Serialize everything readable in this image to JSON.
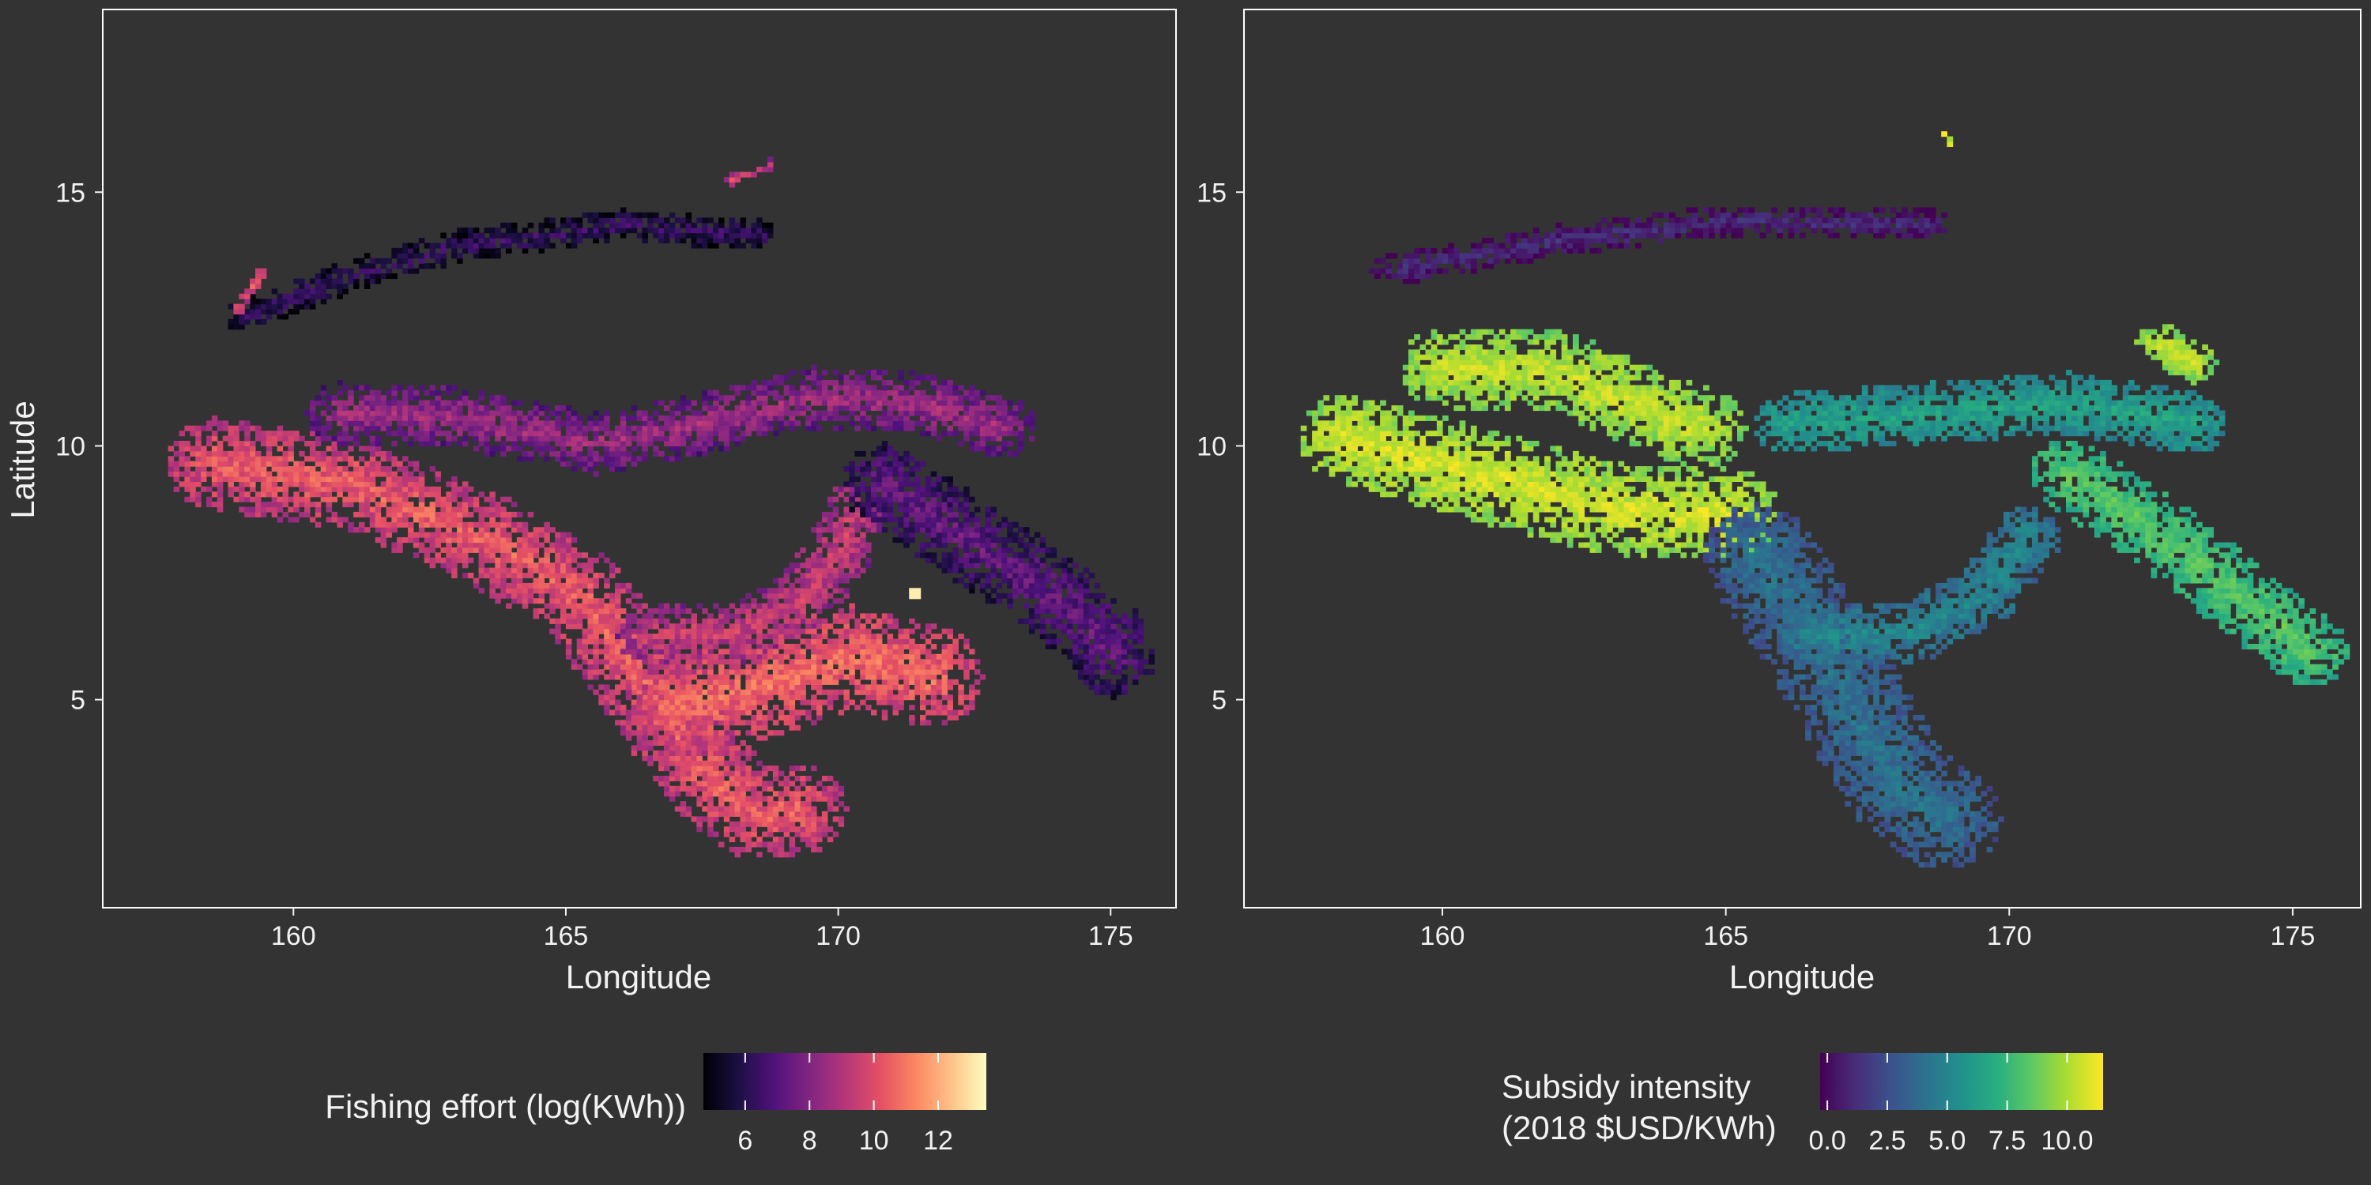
{
  "chart_data": [
    {
      "type": "heatmap",
      "title": "",
      "xlabel": "Longitude",
      "ylabel": "Latitude",
      "xlim": [
        156.5,
        176.2
      ],
      "ylim": [
        0.9,
        18.6
      ],
      "x_ticks": [
        160,
        165,
        170,
        175
      ],
      "y_ticks": [
        5,
        10,
        15
      ],
      "grid": false,
      "legend": {
        "position": "bottom",
        "title": "Fishing effort (log(KWh))",
        "range": [
          4.7,
          13.5
        ],
        "ticks": [
          6,
          8,
          10,
          12
        ],
        "palette": "magma",
        "colors": [
          "#000004",
          "#1c1044",
          "#4f127b",
          "#812581",
          "#b5367a",
          "#e55064",
          "#fb8761",
          "#fec287",
          "#fcfdbf"
        ]
      },
      "notes_visible": "gridded cells ~0.1 deg; high effort band from 159E,9.5N to 168E,2N; hotspot near 171.3E,7.1N",
      "series": [
        {
          "kind": "band",
          "path": [
            [
              158.5,
              9.6
            ],
            [
              161,
              9.2
            ],
            [
              163.5,
              8.1
            ],
            [
              165.2,
              7.0
            ],
            [
              166.2,
              5.6
            ],
            [
              167,
              4.3
            ],
            [
              167.8,
              3.2
            ],
            [
              168.5,
              2.7
            ],
            [
              169.2,
              2.8
            ]
          ],
          "value": 10.5,
          "halfwidth": 0.9
        },
        {
          "kind": "band",
          "path": [
            [
              166.5,
              6.2
            ],
            [
              168.2,
              6.3
            ],
            [
              169.3,
              6.9
            ],
            [
              170,
              7.9
            ],
            [
              170.2,
              8.6
            ]
          ],
          "value": 9.6,
          "halfwidth": 0.6
        },
        {
          "kind": "band",
          "path": [
            [
              160.8,
              10.6
            ],
            [
              163,
              10.5
            ],
            [
              165.5,
              10.0
            ],
            [
              167.5,
              10.4
            ],
            [
              169.5,
              10.9
            ],
            [
              171.5,
              10.8
            ],
            [
              173,
              10.3
            ]
          ],
          "value": 8.6,
          "halfwidth": 0.6
        },
        {
          "kind": "band",
          "path": [
            [
              167,
              4.8
            ],
            [
              168.5,
              5.2
            ],
            [
              170.2,
              5.8
            ],
            [
              171.6,
              5.4
            ]
          ],
          "value": 10.8,
          "halfwidth": 1.0
        },
        {
          "kind": "band",
          "path": [
            [
              170.8,
              9.2
            ],
            [
              172.2,
              8.2
            ],
            [
              173.5,
              7.3
            ],
            [
              174.8,
              6.2
            ],
            [
              175,
              5.8
            ]
          ],
          "value": 7.4,
          "halfwidth": 0.8
        },
        {
          "kind": "band",
          "path": [
            [
              159,
              12.5
            ],
            [
              161,
              13.3
            ],
            [
              163,
              13.9
            ],
            [
              166,
              14.3
            ],
            [
              168.5,
              14.1
            ]
          ],
          "value": 6.5,
          "halfwidth": 0.3
        },
        {
          "kind": "band",
          "path": [
            [
              168,
              15.2
            ],
            [
              168.7,
              15.5
            ]
          ],
          "value": 9.8,
          "halfwidth": 0.1
        },
        {
          "kind": "band",
          "path": [
            [
              158.9,
              12.6
            ],
            [
              159.4,
              13.4
            ]
          ],
          "value": 10.2,
          "halfwidth": 0.1
        },
        {
          "kind": "point",
          "x": 171.3,
          "y": 7.1,
          "value": 13.2
        }
      ]
    },
    {
      "type": "heatmap",
      "title": "",
      "xlabel": "Longitude",
      "ylabel": "",
      "xlim": [
        156.5,
        176.2
      ],
      "ylim": [
        0.9,
        18.6
      ],
      "x_ticks": [
        160,
        165,
        170,
        175
      ],
      "y_ticks": [
        5,
        10,
        15
      ],
      "grid": false,
      "legend": {
        "position": "bottom",
        "title": "Subsidy intensity\n(2018 $USD/KWh)",
        "range": [
          -0.3,
          11.5
        ],
        "ticks": [
          "0.0",
          "2.5",
          "5.0",
          "7.5",
          "10.0"
        ],
        "palette": "viridis",
        "colors": [
          "#440154",
          "#472d7b",
          "#3b528b",
          "#2c728e",
          "#21918c",
          "#28ae80",
          "#5ec962",
          "#addc30",
          "#fde725"
        ]
      },
      "series": [
        {
          "kind": "band",
          "path": [
            [
              158.3,
              10.1
            ],
            [
              160.5,
              9.4
            ],
            [
              163,
              8.7
            ],
            [
              165,
              8.6
            ]
          ],
          "value": 10.8,
          "halfwidth": 0.9
        },
        {
          "kind": "band",
          "path": [
            [
              160,
              11.5
            ],
            [
              162,
              11.4
            ],
            [
              164.5,
              10.3
            ]
          ],
          "value": 10.5,
          "halfwidth": 0.8
        },
        {
          "kind": "band",
          "path": [
            [
              165.5,
              7.8
            ],
            [
              166.5,
              6.2
            ],
            [
              167.3,
              4.6
            ],
            [
              168,
              3.3
            ],
            [
              168.8,
              2.6
            ]
          ],
          "value": 4.2,
          "halfwidth": 1.0
        },
        {
          "kind": "band",
          "path": [
            [
              166.5,
              6.2
            ],
            [
              168.3,
              6.3
            ],
            [
              169.5,
              7.0
            ],
            [
              170.3,
              8.2
            ]
          ],
          "value": 5.2,
          "halfwidth": 0.6
        },
        {
          "kind": "band",
          "path": [
            [
              166,
              10.4
            ],
            [
              168.5,
              10.6
            ],
            [
              171,
              10.8
            ],
            [
              173.2,
              10.4
            ]
          ],
          "value": 6.5,
          "halfwidth": 0.6
        },
        {
          "kind": "band",
          "path": [
            [
              171,
              9.4
            ],
            [
              172.5,
              8.3
            ],
            [
              174,
              7.0
            ],
            [
              175.3,
              5.9
            ]
          ],
          "value": 8.4,
          "halfwidth": 0.7
        },
        {
          "kind": "band",
          "path": [
            [
              172.6,
              12.0
            ],
            [
              173.2,
              11.6
            ]
          ],
          "value": 10.6,
          "halfwidth": 0.4
        },
        {
          "kind": "band",
          "path": [
            [
              159,
              13.4
            ],
            [
              162,
              14.0
            ],
            [
              165,
              14.4
            ],
            [
              168.6,
              14.3
            ]
          ],
          "value": 1.2,
          "halfwidth": 0.3
        },
        {
          "kind": "band",
          "path": [
            [
              168.8,
              16.1
            ],
            [
              168.9,
              15.9
            ]
          ],
          "value": 10.9,
          "halfwidth": 0.05
        }
      ]
    }
  ]
}
